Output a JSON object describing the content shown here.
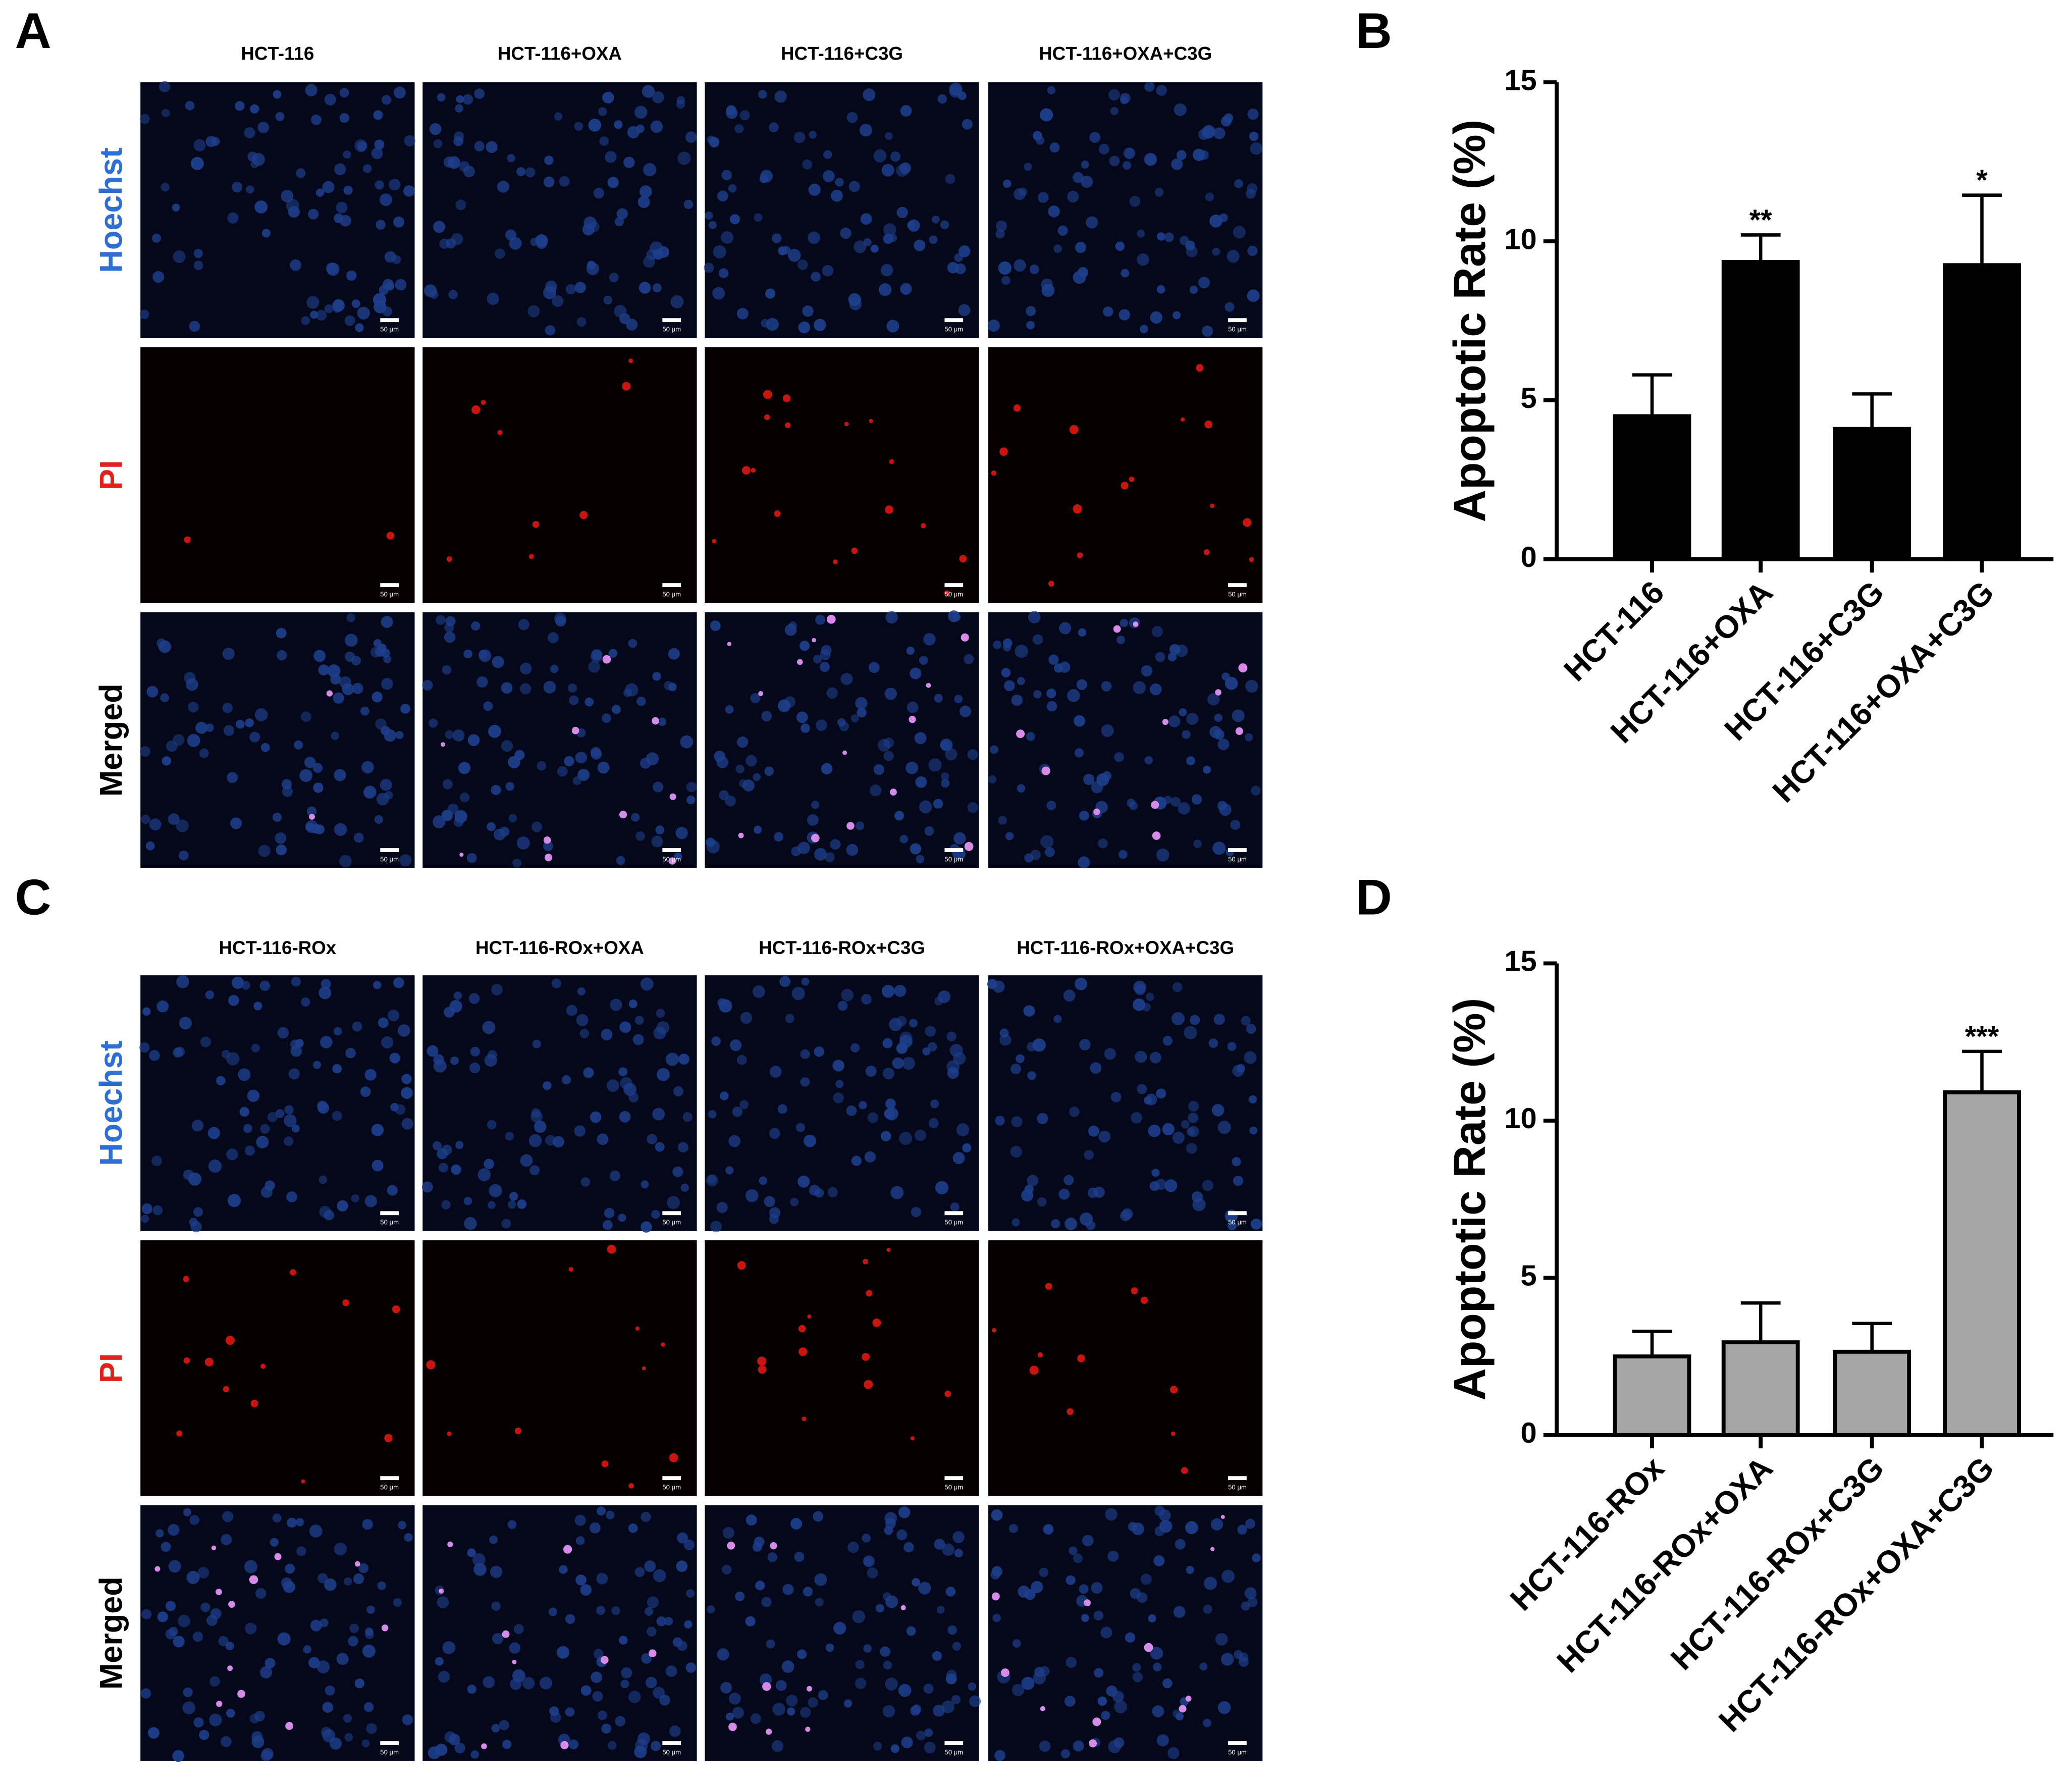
{
  "panels": [
    {
      "label": "A",
      "columns": [
        "HCT-116",
        "HCT-116+OXA",
        "HCT-116+C3G",
        "HCT-116+OXA+C3G"
      ],
      "rows": [
        "Hoechst",
        "PI",
        "Merged"
      ],
      "scale_bar": "50 μm"
    },
    {
      "label": "C",
      "columns": [
        "HCT-116-ROx",
        "HCT-116-ROx+OXA",
        "HCT-116-ROx+C3G",
        "HCT-116-ROx+OXA+C3G"
      ],
      "rows": [
        "Hoechst",
        "PI",
        "Merged"
      ],
      "scale_bar": "50 μm"
    }
  ],
  "chart_data": [
    {
      "type": "bar",
      "panel_label": "B",
      "y_label": "Apoptotic Rate (%)",
      "categories": [
        "HCT-116",
        "HCT-116+OXA",
        "HCT-116+C3G",
        "HCT-116+OXA+C3G"
      ],
      "values": [
        4.5,
        9.35,
        4.1,
        9.25
      ],
      "errors": [
        1.3,
        0.85,
        1.1,
        2.2
      ],
      "significance": [
        null,
        "**",
        null,
        "*"
      ],
      "color": "#000000",
      "ylim": [
        0,
        15
      ],
      "yticks": [
        0,
        5,
        10,
        15
      ]
    },
    {
      "type": "bar",
      "panel_label": "D",
      "y_label": "Apoptotic Rate (%)",
      "categories": [
        "HCT-116-ROx",
        "HCT-116-ROx+OXA",
        "HCT-116-ROx+C3G",
        "HCT-116-ROx+OXA+C3G"
      ],
      "values": [
        2.5,
        2.95,
        2.65,
        10.9
      ],
      "errors": [
        0.8,
        1.25,
        0.9,
        1.3
      ],
      "significance": [
        null,
        null,
        null,
        "***"
      ],
      "color": "#a6a6a6",
      "ylim": [
        0,
        15
      ],
      "yticks": [
        0,
        5,
        10,
        15
      ]
    }
  ]
}
